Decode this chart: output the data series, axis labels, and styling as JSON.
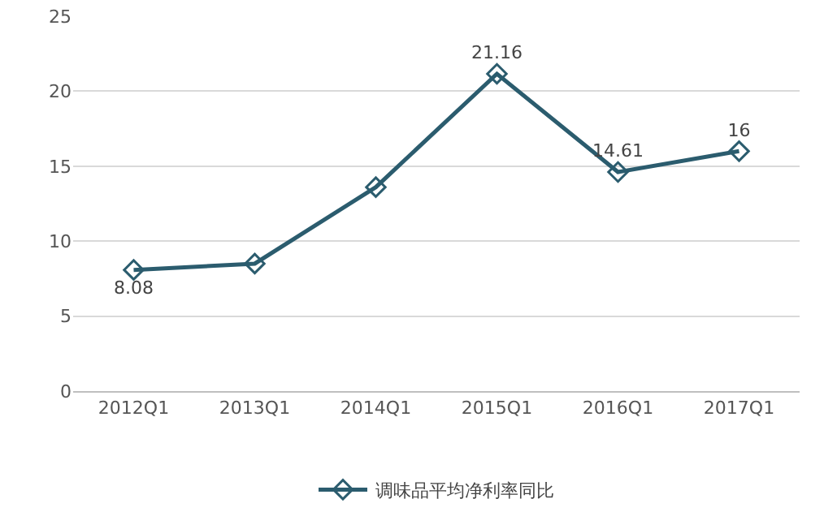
{
  "chart_data": {
    "type": "line",
    "categories": [
      "2012Q1",
      "2013Q1",
      "2014Q1",
      "2015Q1",
      "2016Q1",
      "2017Q1"
    ],
    "series": [
      {
        "name": "调味品平均净利率同比",
        "color": "#2b5c6e",
        "values": [
          8.08,
          8.5,
          13.6,
          21.16,
          14.61,
          16
        ],
        "value_labels": [
          "8.08",
          null,
          null,
          "21.16",
          "14.61",
          "16"
        ]
      }
    ],
    "ylim": [
      0,
      25
    ],
    "yticks": [
      0,
      5,
      10,
      15,
      20,
      25
    ],
    "grid": "y",
    "legend": "bottom",
    "marker": "diamond",
    "line_style": "solid"
  }
}
